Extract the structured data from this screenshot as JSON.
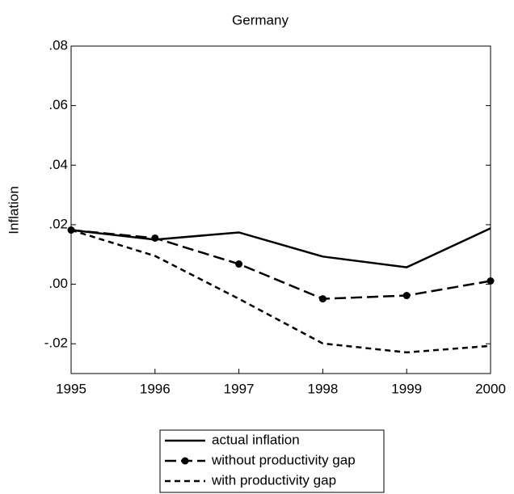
{
  "chart_data": {
    "type": "line",
    "title": "Germany",
    "y_label": "Inflation",
    "x": [
      1995,
      1996,
      1997,
      1998,
      1999,
      2000
    ],
    "xlim": [
      1995,
      2000
    ],
    "xticks": [
      1995,
      1996,
      1997,
      1998,
      1999,
      2000
    ],
    "ylim": [
      -0.03,
      0.08
    ],
    "yticks": [
      {
        "value": -0.02,
        "label": "-.02"
      },
      {
        "value": 0,
        "label": ".00"
      },
      {
        "value": 0.02,
        "label": ".02"
      },
      {
        "value": 0.04,
        "label": ".04"
      },
      {
        "value": 0.06,
        "label": ".06"
      },
      {
        "value": 0.08,
        "label": ".08"
      }
    ],
    "series": [
      {
        "name": "actual inflation",
        "color": "#000000",
        "line_style": "solid",
        "marker": "none",
        "values": [
          0.0182,
          0.015,
          0.0174,
          0.0093,
          0.0057,
          0.0188
        ]
      },
      {
        "name": "without productivity gap",
        "color": "#000000",
        "line_style": "long-dash",
        "marker": "circle",
        "values": [
          0.0182,
          0.0155,
          0.0068,
          -0.0049,
          -0.0038,
          0.0011
        ]
      },
      {
        "name": "with productivity gap",
        "color": "#000000",
        "line_style": "dashed",
        "marker": "none",
        "values": [
          0.0182,
          0.0095,
          -0.0049,
          -0.0199,
          -0.0229,
          -0.0207
        ]
      }
    ],
    "legend": "bottom"
  }
}
